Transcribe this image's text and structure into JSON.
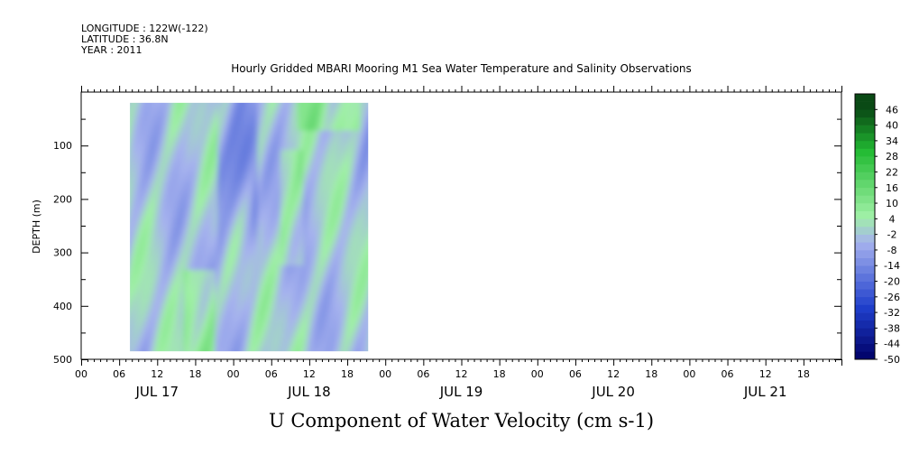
{
  "header": {
    "longitude": "LONGITUDE : 122W(-122)",
    "latitude": "LATITUDE : 36.8N",
    "year": "YEAR : 2011",
    "title": "Hourly Gridded MBARI Mooring M1 Sea Water Temperature and Salinity Observations"
  },
  "chart_data": {
    "type": "heatmap",
    "title": "Hourly Gridded MBARI Mooring M1 Sea Water Temperature and Salinity Observations",
    "xlabel": "",
    "ylabel": "DEPTH (m)",
    "colorbar_label": "U Component of Water Velocity (cm s-1)",
    "x_hour_ticks": [
      "00",
      "06",
      "12",
      "18",
      "00",
      "06",
      "12",
      "18",
      "00",
      "06",
      "12",
      "18",
      "00",
      "06",
      "12",
      "18",
      "00",
      "06",
      "12",
      "18"
    ],
    "x_day_labels": [
      "JUL 17",
      "JUL 18",
      "JUL 19",
      "JUL 20",
      "JUL 21"
    ],
    "y_ticks": [
      100,
      200,
      300,
      400,
      500
    ],
    "ylim": [
      500,
      0
    ],
    "xlim_hours": [
      0,
      120
    ],
    "data_hours_range": [
      7.7,
      45.3
    ],
    "data_depth_range": [
      20,
      485
    ],
    "colorbar_levels": [
      "46",
      "40",
      "34",
      "28",
      "22",
      "16",
      "10",
      "4",
      "-2",
      "-8",
      "-14",
      "-20",
      "-26",
      "-32",
      "-38",
      "-44",
      "-50"
    ],
    "colors": {
      "most_negative": "#000066",
      "negative": "#1f3fcc",
      "slightly_negative": "#a6b2ee",
      "slightly_positive": "#a0f0a6",
      "positive": "#22bb33",
      "most_positive": "#0a4a15"
    }
  },
  "footer": {
    "bottom_title": "U Component of Water Velocity (cm s-1)"
  }
}
